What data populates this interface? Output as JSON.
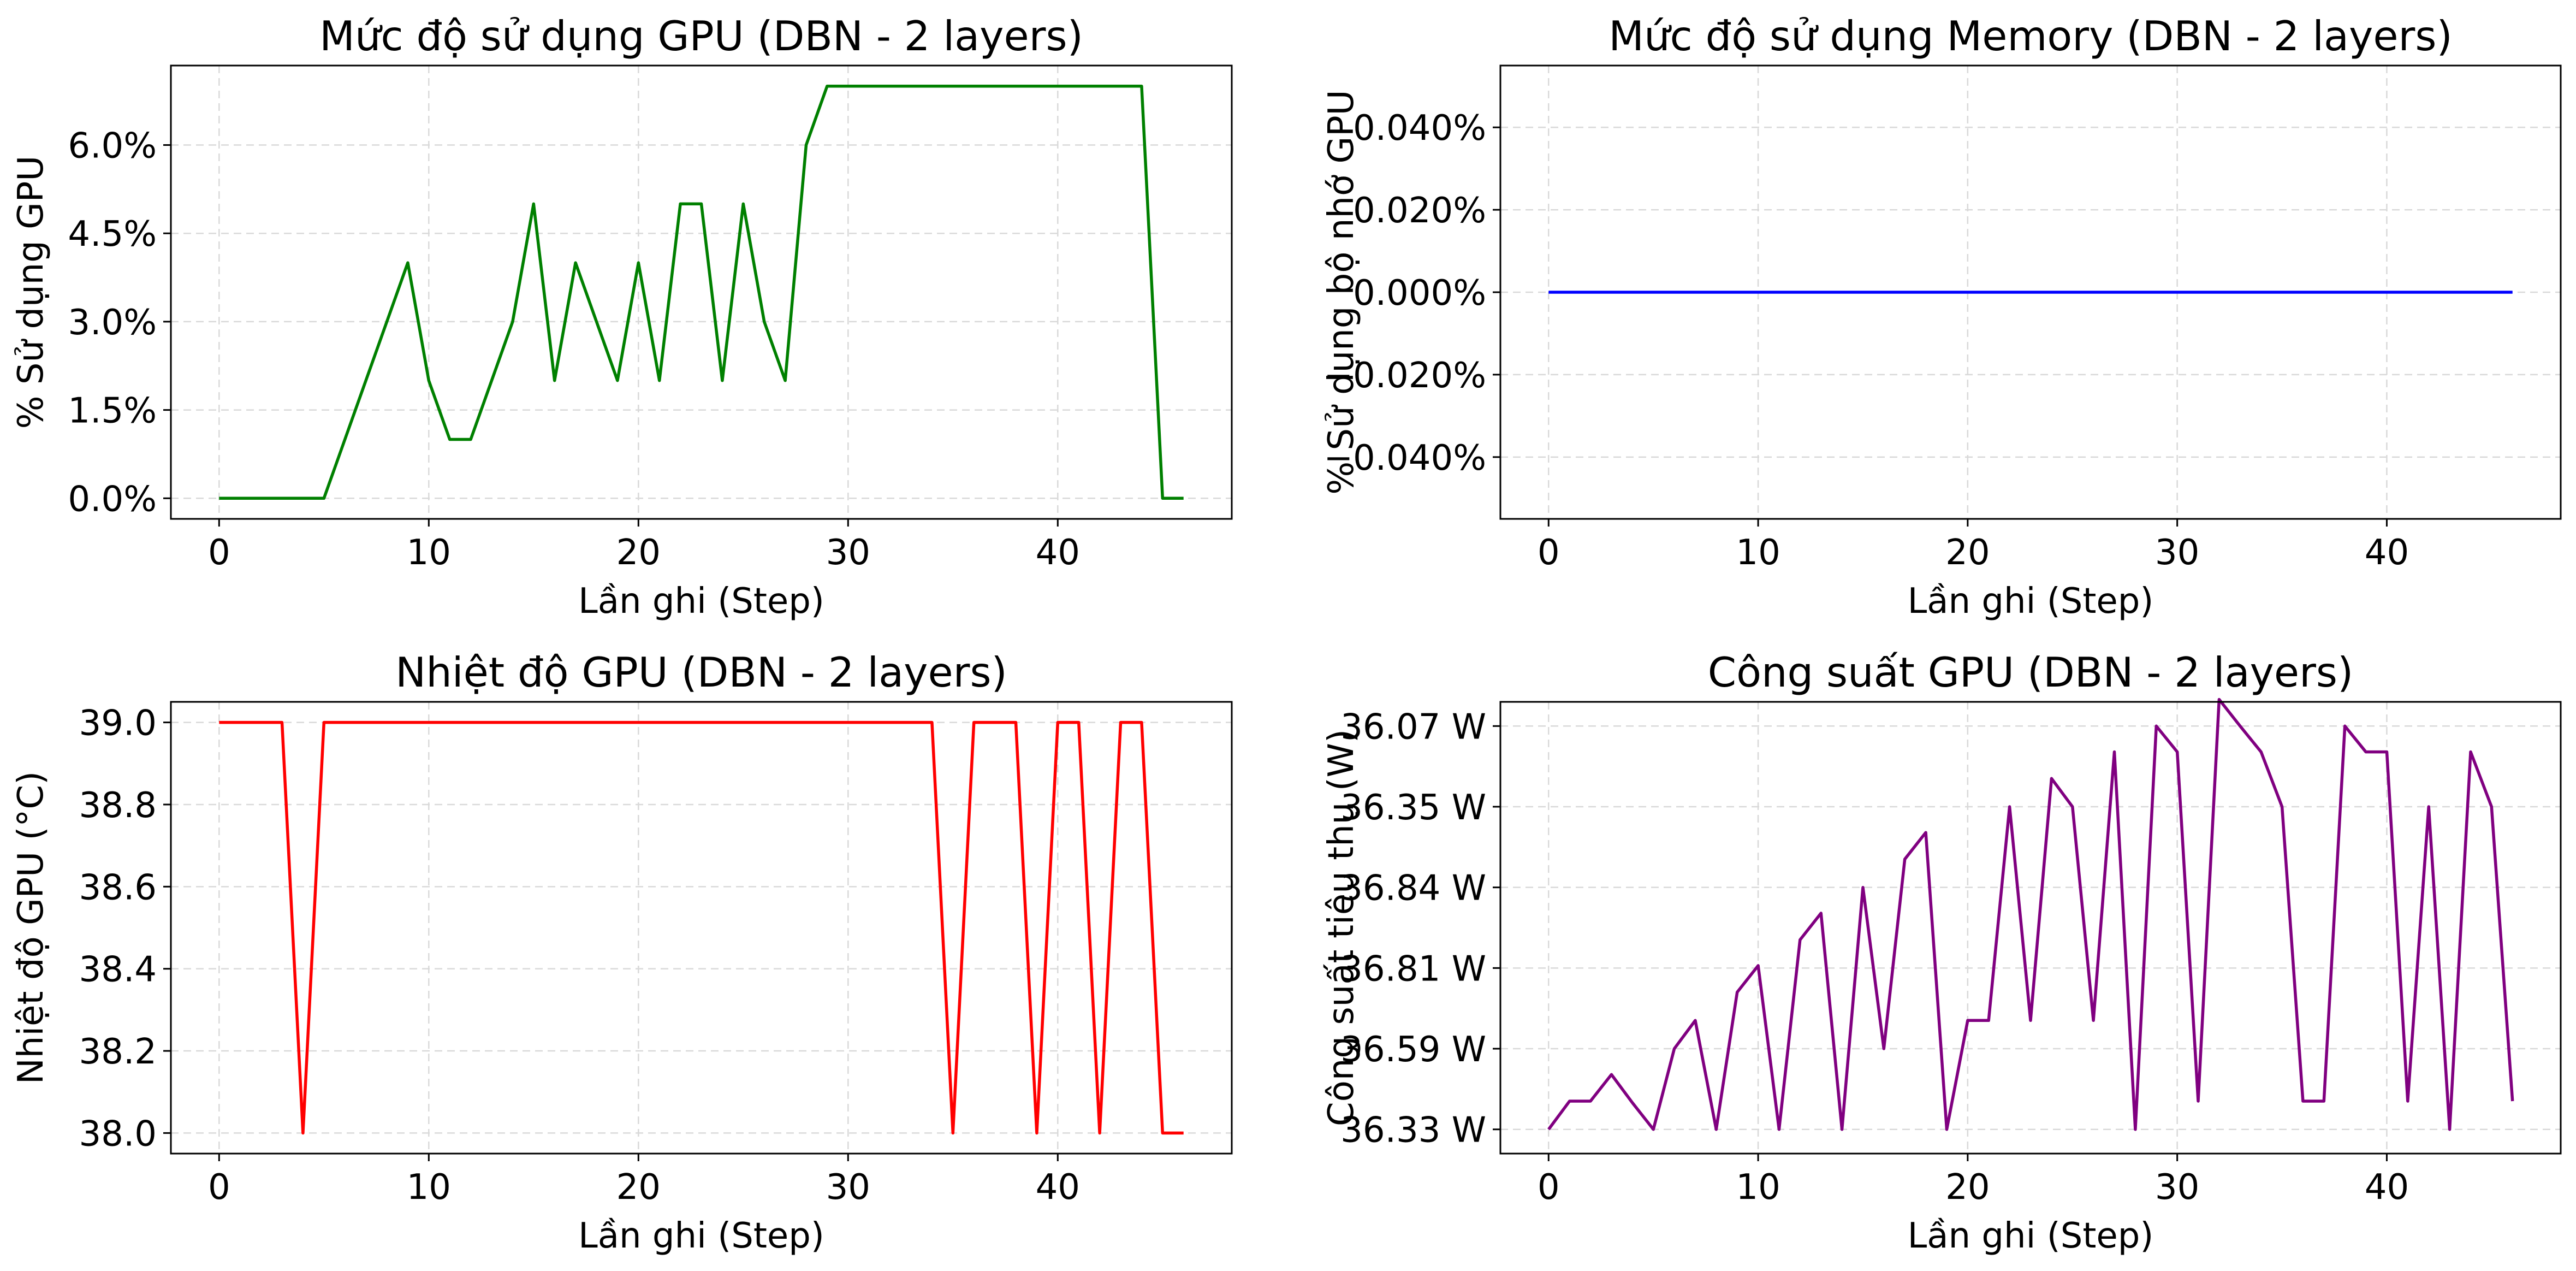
{
  "chart_data": [
    {
      "type": "line",
      "title": "Mức độ sử dụng GPU (DBN - 2 layers)",
      "xlabel": "Lần ghi (Step)",
      "ylabel": "% Sử dụng GPU",
      "color": "#008000",
      "grid": true,
      "xlim": [
        -2.3,
        48.3
      ],
      "ylim": [
        -0.35,
        7.35
      ],
      "x_ticks": [
        0,
        10,
        20,
        30,
        40
      ],
      "x_tick_labels": [
        "0",
        "10",
        "20",
        "30",
        "40"
      ],
      "y_ticks": [
        0,
        1.5,
        3,
        4.5,
        6
      ],
      "y_tick_labels": [
        "0.0%",
        "1.5%",
        "3.0%",
        "4.5%",
        "6.0%"
      ],
      "x": [
        0,
        1,
        2,
        3,
        4,
        5,
        6,
        7,
        8,
        9,
        10,
        11,
        12,
        13,
        14,
        15,
        16,
        17,
        18,
        19,
        20,
        21,
        22,
        23,
        24,
        25,
        26,
        27,
        28,
        29,
        30,
        31,
        32,
        33,
        34,
        35,
        36,
        37,
        38,
        39,
        40,
        41,
        42,
        43,
        44,
        45,
        46
      ],
      "values": [
        0,
        0,
        0,
        0,
        0,
        0,
        1,
        2,
        3,
        4,
        2,
        1,
        1,
        2,
        3,
        5,
        2,
        4,
        3,
        2,
        4,
        2,
        5,
        5,
        2,
        5,
        3,
        2,
        6,
        7,
        7,
        7,
        7,
        7,
        7,
        7,
        7,
        7,
        7,
        7,
        7,
        7,
        7,
        7,
        7,
        0,
        0
      ]
    },
    {
      "type": "line",
      "title": "Mức độ sử dụng Memory (DBN - 2 layers)",
      "xlabel": "Lần ghi (Step)",
      "ylabel": "% Sử dụng bộ nhớ GPU",
      "color": "#0000ff",
      "grid": true,
      "xlim": [
        -2.3,
        48.3
      ],
      "ylim": [
        -0.055,
        0.055
      ],
      "x_ticks": [
        0,
        10,
        20,
        30,
        40
      ],
      "x_tick_labels": [
        "0",
        "10",
        "20",
        "30",
        "40"
      ],
      "y_ticks": [
        -0.04,
        -0.02,
        0,
        0.02,
        0.04
      ],
      "y_tick_labels": [
        "−0.040%",
        "−0.020%",
        "0.000%",
        "0.020%",
        "0.040%"
      ],
      "x": [
        0,
        46
      ],
      "values": [
        0,
        0
      ]
    },
    {
      "type": "line",
      "title": "Nhiệt độ GPU (DBN - 2 layers)",
      "xlabel": "Lần ghi (Step)",
      "ylabel": "Nhiệt độ GPU (°C)",
      "color": "#ff0000",
      "grid": true,
      "xlim": [
        -2.3,
        48.3
      ],
      "ylim": [
        37.95,
        39.05
      ],
      "x_ticks": [
        0,
        10,
        20,
        30,
        40
      ],
      "x_tick_labels": [
        "0",
        "10",
        "20",
        "30",
        "40"
      ],
      "y_ticks": [
        38.0,
        38.2,
        38.4,
        38.6,
        38.8,
        39.0
      ],
      "y_tick_labels": [
        "38.0",
        "38.2",
        "38.4",
        "38.6",
        "38.8",
        "39.0"
      ],
      "x": [
        0,
        1,
        2,
        3,
        4,
        5,
        6,
        7,
        8,
        9,
        10,
        11,
        12,
        13,
        14,
        15,
        16,
        17,
        18,
        19,
        20,
        21,
        22,
        23,
        24,
        25,
        26,
        27,
        28,
        29,
        30,
        31,
        32,
        33,
        34,
        35,
        36,
        37,
        38,
        39,
        40,
        41,
        42,
        43,
        44,
        45,
        46
      ],
      "values": [
        39,
        39,
        39,
        39,
        38,
        39,
        39,
        39,
        39,
        39,
        39,
        39,
        39,
        39,
        39,
        39,
        39,
        39,
        39,
        39,
        39,
        39,
        39,
        39,
        39,
        39,
        39,
        39,
        39,
        39,
        39,
        39,
        39,
        39,
        39,
        38,
        39,
        39,
        39,
        38,
        39,
        39,
        38,
        39,
        39,
        38,
        38
      ]
    },
    {
      "type": "line",
      "title": "Công suất GPU (DBN - 2 layers)",
      "xlabel": "Lần ghi (Step)",
      "ylabel": "Công suất tiêu thụ (W)",
      "color": "#800080",
      "grid": true,
      "xlim": [
        -2.3,
        48.3
      ],
      "ylim": [
        -0.3,
        5.3
      ],
      "x_ticks": [
        0,
        10,
        20,
        30,
        40
      ],
      "x_tick_labels": [
        "0",
        "10",
        "20",
        "30",
        "40"
      ],
      "y_ticks": [
        0,
        1,
        2,
        3,
        4,
        5
      ],
      "y_tick_labels": [
        "36.33 W",
        "36.59 W",
        "36.81 W",
        "36.84 W",
        "36.35 W",
        "36.07 W"
      ],
      "x": [
        0,
        1,
        2,
        3,
        4,
        5,
        6,
        7,
        8,
        9,
        10,
        11,
        12,
        13,
        14,
        15,
        16,
        17,
        18,
        19,
        20,
        21,
        22,
        23,
        24,
        25,
        26,
        27,
        28,
        29,
        30,
        31,
        32,
        33,
        34,
        35,
        36,
        37,
        38,
        39,
        40,
        41,
        42,
        43,
        44,
        45,
        46
      ],
      "values": [
        0,
        0.35,
        0.35,
        0.68,
        0.33,
        0,
        1,
        1.35,
        0,
        1.7,
        2.03,
        0,
        2.35,
        2.68,
        0,
        3,
        1,
        3.35,
        3.68,
        0,
        1.35,
        1.35,
        4,
        1.35,
        4.35,
        4,
        1.35,
        4.68,
        0,
        5,
        4.68,
        0.35,
        5.33,
        5,
        4.68,
        4,
        0.35,
        0.35,
        5,
        4.68,
        4.68,
        0.35,
        4,
        0,
        4.68,
        4,
        0.35
      ]
    }
  ]
}
